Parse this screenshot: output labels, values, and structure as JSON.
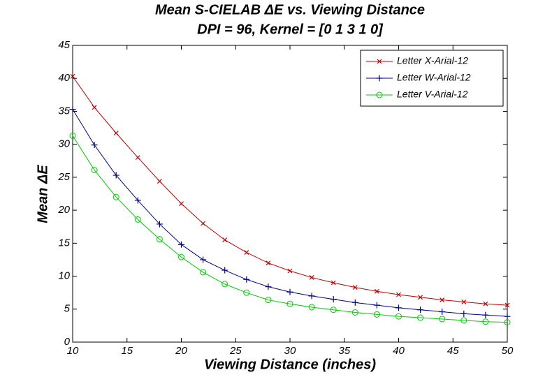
{
  "chart_data": {
    "type": "line",
    "title": "Mean S-CIELAB ΔE vs. Viewing Distance",
    "subtitle": "DPI = 96, Kernel = [0 1 3 1 0]",
    "xlabel": "Viewing Distance (inches)",
    "ylabel": "Mean ΔE",
    "x": [
      10,
      12,
      14,
      16,
      18,
      20,
      22,
      24,
      26,
      28,
      30,
      32,
      34,
      36,
      38,
      40,
      42,
      44,
      46,
      48,
      50
    ],
    "series": [
      {
        "name": "Letter X-Arial-12",
        "color": "#c00000",
        "marker": "x",
        "values": [
          40.3,
          35.6,
          31.7,
          28.0,
          24.4,
          21.0,
          18.0,
          15.5,
          13.6,
          12.0,
          10.8,
          9.8,
          9.0,
          8.3,
          7.7,
          7.2,
          6.8,
          6.4,
          6.1,
          5.8,
          5.6
        ]
      },
      {
        "name": "Letter W-Arial-12",
        "color": "#00008b",
        "marker": "+",
        "values": [
          35.3,
          29.9,
          25.3,
          21.5,
          17.9,
          14.8,
          12.5,
          10.9,
          9.5,
          8.4,
          7.6,
          7.0,
          6.5,
          6.0,
          5.6,
          5.2,
          4.9,
          4.6,
          4.3,
          4.1,
          3.9
        ]
      },
      {
        "name": "Letter V-Arial-12",
        "color": "#00cc00",
        "marker": "o",
        "values": [
          31.3,
          26.1,
          22.0,
          18.6,
          15.6,
          12.9,
          10.6,
          8.8,
          7.5,
          6.4,
          5.8,
          5.3,
          4.9,
          4.5,
          4.2,
          3.9,
          3.7,
          3.5,
          3.3,
          3.1,
          3.0
        ]
      }
    ],
    "xlim": [
      10,
      50
    ],
    "xticks": [
      10,
      15,
      20,
      25,
      30,
      35,
      40,
      45,
      50
    ],
    "ylim": [
      0,
      45
    ],
    "yticks": [
      0,
      5,
      10,
      15,
      20,
      25,
      30,
      35,
      40,
      45
    ],
    "grid": false,
    "legend": "upper right"
  }
}
